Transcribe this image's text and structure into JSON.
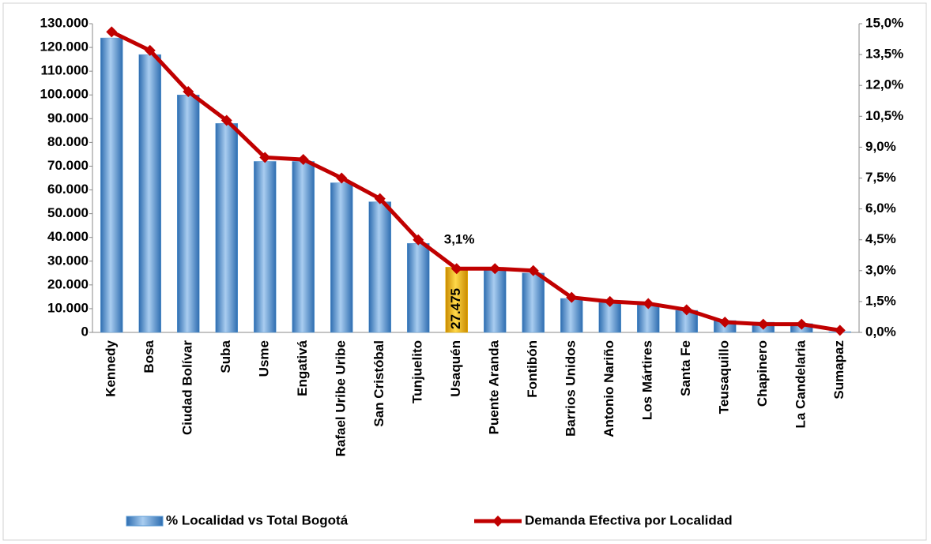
{
  "chart_data": {
    "type": "bar-line",
    "categories": [
      "Kennedy",
      "Bosa",
      "Ciudad Bolívar",
      "Suba",
      "Usme",
      "Engativá",
      "Rafael Uribe Uribe",
      "San Cristóbal",
      "Tunjuelito",
      "Usaquén",
      "Puente Aranda",
      "Fontibón",
      "Barrios Unidos",
      "Antonio Nariño",
      "Los Mártires",
      "Santa Fe",
      "Teusaquillo",
      "Chapinero",
      "La Candelaria",
      "Sumapaz"
    ],
    "series": [
      {
        "name": "% Localidad vs Total Bogotá",
        "kind": "bar",
        "color": "#5b9bd5",
        "colors": [
          "#5b9bd5",
          "#5b9bd5",
          "#5b9bd5",
          "#5b9bd5",
          "#5b9bd5",
          "#5b9bd5",
          "#5b9bd5",
          "#5b9bd5",
          "#5b9bd5",
          "#f2b800",
          "#5b9bd5",
          "#5b9bd5",
          "#5b9bd5",
          "#5b9bd5",
          "#5b9bd5",
          "#5b9bd5",
          "#5b9bd5",
          "#5b9bd5",
          "#5b9bd5",
          "#5b9bd5"
        ],
        "values": [
          124000,
          117000,
          100000,
          88000,
          72000,
          72000,
          63000,
          55000,
          37500,
          27475,
          26500,
          25000,
          14300,
          12600,
          11600,
          9300,
          5000,
          4300,
          3700,
          300
        ],
        "value_labels": [
          null,
          null,
          null,
          null,
          null,
          null,
          null,
          null,
          null,
          "27.475",
          null,
          null,
          null,
          null,
          null,
          null,
          null,
          null,
          null,
          null
        ]
      },
      {
        "name": "Demanda Efectiva por Localidad",
        "kind": "line",
        "axis": "y2",
        "color": "#c00000",
        "values": [
          14.6,
          13.7,
          11.7,
          10.3,
          8.5,
          8.4,
          7.5,
          6.5,
          4.5,
          3.1,
          3.1,
          3.0,
          1.7,
          1.5,
          1.4,
          1.1,
          0.5,
          0.4,
          0.4,
          0.1
        ],
        "value_labels": [
          null,
          null,
          null,
          null,
          null,
          null,
          null,
          null,
          null,
          "3,1%",
          null,
          null,
          null,
          null,
          null,
          null,
          null,
          null,
          null,
          null
        ]
      }
    ],
    "ylim": [
      0,
      130000
    ],
    "yticks": [
      0,
      {
        "value": 10000,
        "label": "10.000"
      },
      {
        "value": 20000,
        "label": "20.000"
      },
      {
        "value": 30000,
        "label": "30.000"
      },
      {
        "value": 40000,
        "label": "40.000"
      },
      {
        "value": 50000,
        "label": "50.000"
      },
      {
        "value": 60000,
        "label": "60.000"
      },
      {
        "value": 70000,
        "label": "70.000"
      },
      {
        "value": 80000,
        "label": "80.000"
      },
      {
        "value": 90000,
        "label": "90.000"
      },
      {
        "value": 100000,
        "label": "100.000"
      },
      {
        "value": 110000,
        "label": "110.000"
      },
      {
        "value": 120000,
        "label": "120.000"
      },
      {
        "value": 130000,
        "label": "130.000"
      }
    ],
    "y2lim": [
      0,
      15
    ],
    "y2ticks": [
      {
        "value": 0,
        "label": "0,0%"
      },
      {
        "value": 1.5,
        "label": "1,5%"
      },
      {
        "value": 3,
        "label": "3,0%"
      },
      {
        "value": 4.5,
        "label": "4,5%"
      },
      {
        "value": 6,
        "label": "6,0%"
      },
      {
        "value": 7.5,
        "label": "7,5%"
      },
      {
        "value": 9,
        "label": "9,0%"
      },
      {
        "value": 10.5,
        "label": "10,5%"
      },
      {
        "value": 12,
        "label": "12,0%"
      },
      {
        "value": 13.5,
        "label": "13,5%"
      },
      {
        "value": 15,
        "label": "15,0%"
      }
    ],
    "legend": "bottom"
  }
}
